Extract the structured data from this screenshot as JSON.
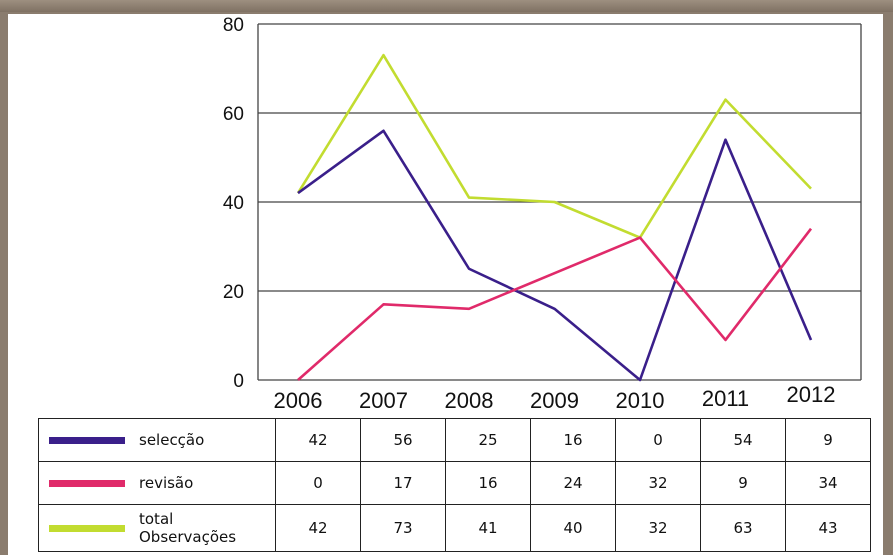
{
  "chart_data": {
    "type": "line",
    "categories": [
      "2006",
      "2007",
      "2008",
      "2009",
      "2010",
      "2011",
      "2012"
    ],
    "ylim": [
      0,
      80
    ],
    "yticks": [
      0,
      20,
      40,
      60,
      80
    ],
    "grid": true,
    "legend_placement": "table-below",
    "series": [
      {
        "name": "selecção",
        "color": "#3a1f8a",
        "values": [
          42,
          56,
          25,
          16,
          0,
          54,
          9
        ]
      },
      {
        "name": "revisão",
        "color": "#e02a6a",
        "values": [
          0,
          17,
          16,
          24,
          32,
          9,
          34
        ]
      },
      {
        "name": "total\nObservações",
        "color": "#c2dc30",
        "values": [
          42,
          73,
          41,
          40,
          32,
          63,
          43
        ]
      }
    ]
  }
}
